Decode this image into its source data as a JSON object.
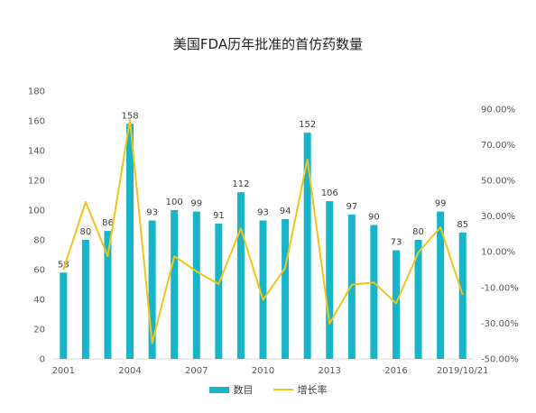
{
  "chart_data": {
    "type": "bar",
    "title": "美国FDA历年批准的首仿药数量",
    "categories": [
      "2001",
      "2002",
      "2003",
      "2004",
      "2005",
      "2006",
      "2007",
      "2008",
      "2009",
      "2010",
      "2011",
      "2012",
      "2013",
      "2014",
      "2015",
      "2016",
      "2017",
      "2018",
      "2019/10/21"
    ],
    "x_tick_labels": [
      "2001",
      "2004",
      "2007",
      "2010",
      "2013",
      "2016",
      "2019/10/21"
    ],
    "series": [
      {
        "name": "数目",
        "kind": "bar",
        "axis": "left",
        "values": [
          58,
          80,
          86,
          158,
          93,
          100,
          99,
          91,
          112,
          93,
          94,
          152,
          106,
          97,
          90,
          73,
          80,
          99,
          85
        ],
        "color": "#18b4c8"
      },
      {
        "name": "增长率",
        "kind": "line",
        "axis": "right",
        "values": [
          0.0,
          37.93,
          7.5,
          83.72,
          -41.14,
          7.53,
          -1.0,
          -8.08,
          23.08,
          -16.96,
          1.08,
          61.7,
          -30.26,
          -8.49,
          -7.22,
          -18.89,
          9.59,
          23.75,
          -14.14
        ],
        "color": "#f0c419"
      }
    ],
    "ylim": [
      0,
      180
    ],
    "y_ticks": [
      0,
      20,
      40,
      60,
      80,
      100,
      120,
      140,
      160,
      180
    ],
    "y2lim": [
      -50,
      100
    ],
    "y2_ticks": [
      "-50.00%",
      "-30.00%",
      "-10.00%",
      "10.00%",
      "30.00%",
      "50.00%",
      "70.00%",
      "90.00%"
    ],
    "y2_tick_values": [
      -50,
      -30,
      -10,
      10,
      30,
      50,
      70,
      90
    ],
    "grid": false,
    "legend_position": "bottom",
    "xlabel": "",
    "ylabel": ""
  }
}
